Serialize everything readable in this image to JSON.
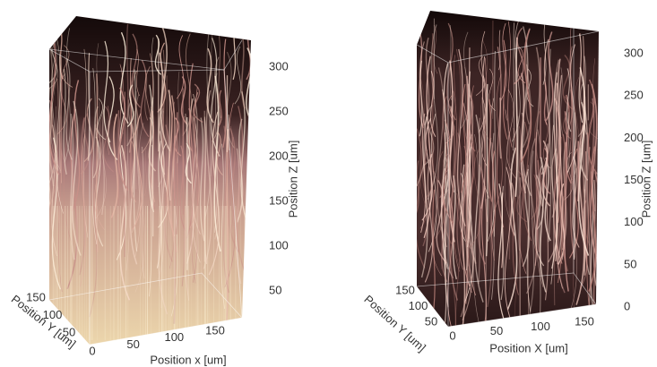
{
  "panels": [
    {
      "z_axis": {
        "label": "Position Z [um]",
        "ticks": [
          300,
          250,
          200,
          150,
          100,
          50
        ]
      },
      "y_axis": {
        "label": "Position Y [um]",
        "ticks": [
          150,
          100,
          50
        ]
      },
      "x_axis": {
        "label": "Position x [um]",
        "ticks": [
          0,
          50,
          100,
          150
        ]
      }
    },
    {
      "z_axis": {
        "label": "Position Z [um]",
        "ticks": [
          300,
          250,
          200,
          150,
          100,
          50,
          0
        ]
      },
      "y_axis": {
        "label": "Position Y [um]",
        "ticks": [
          150,
          100,
          50
        ]
      },
      "x_axis": {
        "label": "Position X [um]",
        "ticks": [
          0,
          50,
          100,
          150
        ]
      }
    }
  ]
}
